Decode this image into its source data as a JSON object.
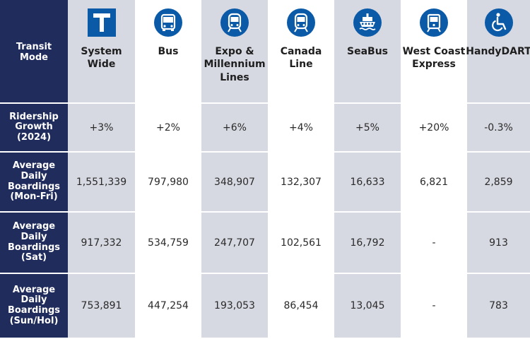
{
  "corner_label": "Transit\nMode",
  "colors": {
    "header_navy": "#202c5c",
    "column_shade": "#d7d9e2",
    "icon_blue": "#0b5aa8"
  },
  "modes": [
    {
      "label": "System\nWide",
      "icon": "transit-t-icon"
    },
    {
      "label": "Bus",
      "icon": "bus-icon"
    },
    {
      "label": "Expo &\nMillennium\nLines",
      "icon": "skytrain-icon"
    },
    {
      "label": "Canada\nLine",
      "icon": "train-icon"
    },
    {
      "label": "SeaBus",
      "icon": "ferry-icon"
    },
    {
      "label": "West Coast\nExpress",
      "icon": "commuter-train-icon"
    },
    {
      "label": "HandyDART",
      "icon": "wheelchair-icon"
    }
  ],
  "rows": [
    {
      "label": "Ridership\nGrowth\n(2024)",
      "values": [
        "+3%",
        "+2%",
        "+6%",
        "+4%",
        "+5%",
        "+20%",
        "-0.3%"
      ]
    },
    {
      "label": "Average\nDaily\nBoardings\n(Mon-Fri)",
      "values": [
        "1,551,339",
        "797,980",
        "348,907",
        "132,307",
        "16,633",
        "6,821",
        "2,859"
      ]
    },
    {
      "label": "Average\nDaily\nBoardings\n(Sat)",
      "values": [
        "917,332",
        "534,759",
        "247,707",
        "102,561",
        "16,792",
        "-",
        "913"
      ]
    },
    {
      "label": "Average\nDaily\nBoardings\n(Sun/Hol)",
      "values": [
        "753,891",
        "447,254",
        "193,053",
        "86,454",
        "13,045",
        "-",
        "783"
      ]
    }
  ]
}
